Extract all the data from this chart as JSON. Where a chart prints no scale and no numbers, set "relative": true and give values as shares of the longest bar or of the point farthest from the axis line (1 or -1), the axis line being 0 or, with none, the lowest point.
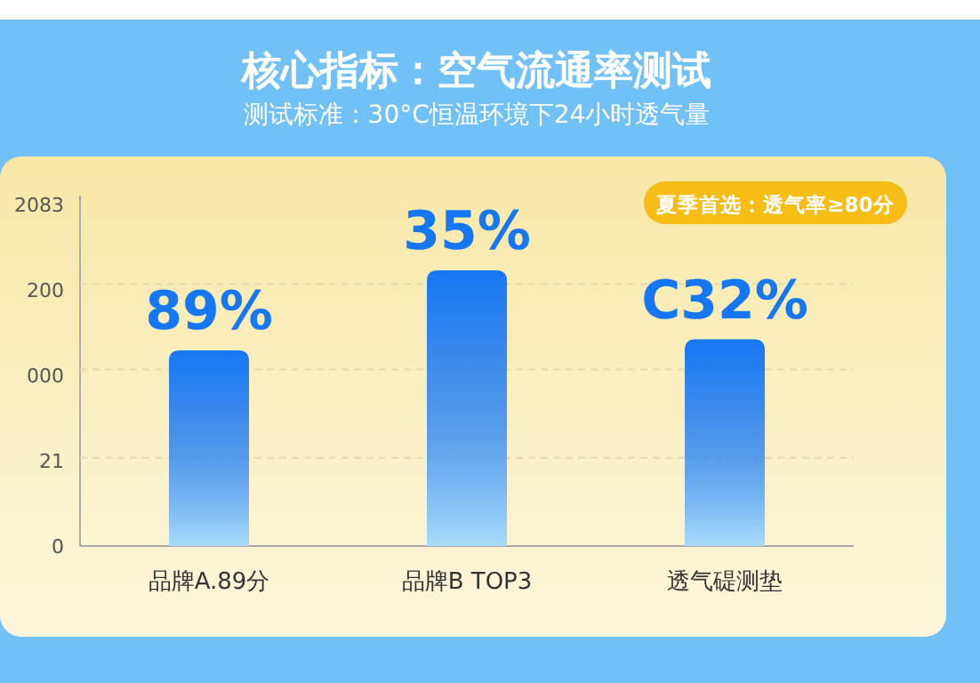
{
  "chart_data": {
    "type": "bar",
    "title": "核心指标：空气流通率测试",
    "subtitle": "测试标准：30°C恒温环境下24小时透气量",
    "categories": [
      "品牌A.89分",
      "品牌B  TOP3",
      "透气碮测垫"
    ],
    "values": [
      0.71,
      1,
      0.75
    ],
    "color": "#1677f5",
    "relative": true,
    "ref_lines": [
      {
        "axis": "y",
        "value": 0.32,
        "color": "#e6d9b0",
        "line_style": "dashed"
      },
      {
        "axis": "y",
        "value": 0.64,
        "color": "#e6d9b0",
        "line_style": "dashed"
      },
      {
        "axis": "y",
        "value": 0.95,
        "color": "#e6d9b0",
        "line_style": "dashed"
      }
    ],
    "annotations": [
      "夏季首选：透气率≥80分",
      "2083",
      "200",
      "000",
      "21",
      "0",
      {
        "text": "89%",
        "x": "品牌A.89分",
        "y": 0.71
      },
      {
        "text": "35%",
        "x": "品牌B  TOP3",
        "y": 1
      },
      {
        "text": "C32%",
        "x": "透气碮测垫",
        "y": 0.75
      }
    ]
  }
}
